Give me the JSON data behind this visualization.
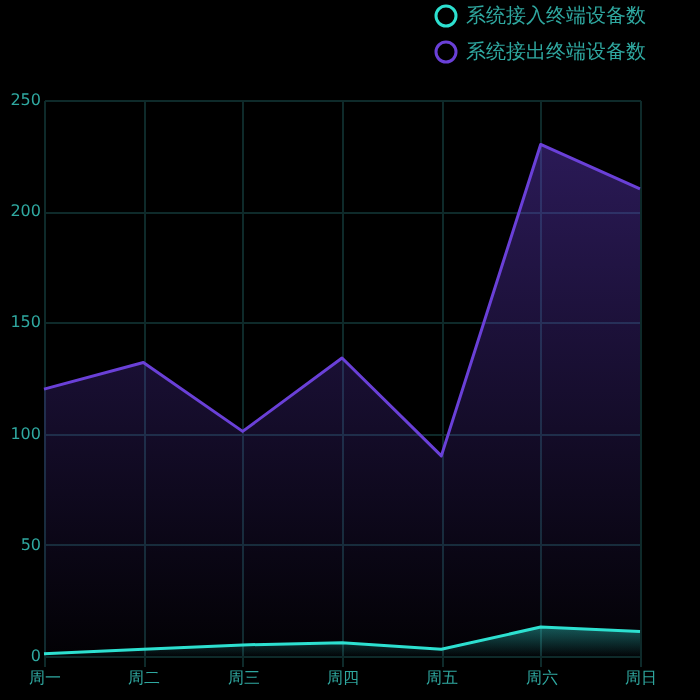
{
  "chart_data": {
    "type": "area",
    "categories": [
      "周一",
      "周二",
      "周三",
      "周四",
      "周五",
      "周六",
      "周日"
    ],
    "series": [
      {
        "name": "系统接入终端设备数",
        "color": "#2de0d0",
        "values": [
          1,
          3,
          5,
          6,
          3,
          13,
          11
        ]
      },
      {
        "name": "系统接出终端设备数",
        "color": "#6a40d8",
        "values": [
          120,
          132,
          101,
          134,
          90,
          230,
          210
        ]
      }
    ],
    "ylim": [
      0,
      250
    ],
    "yticks": [
      0,
      50,
      100,
      150,
      200,
      250
    ],
    "grid": true,
    "legend": "top right"
  }
}
